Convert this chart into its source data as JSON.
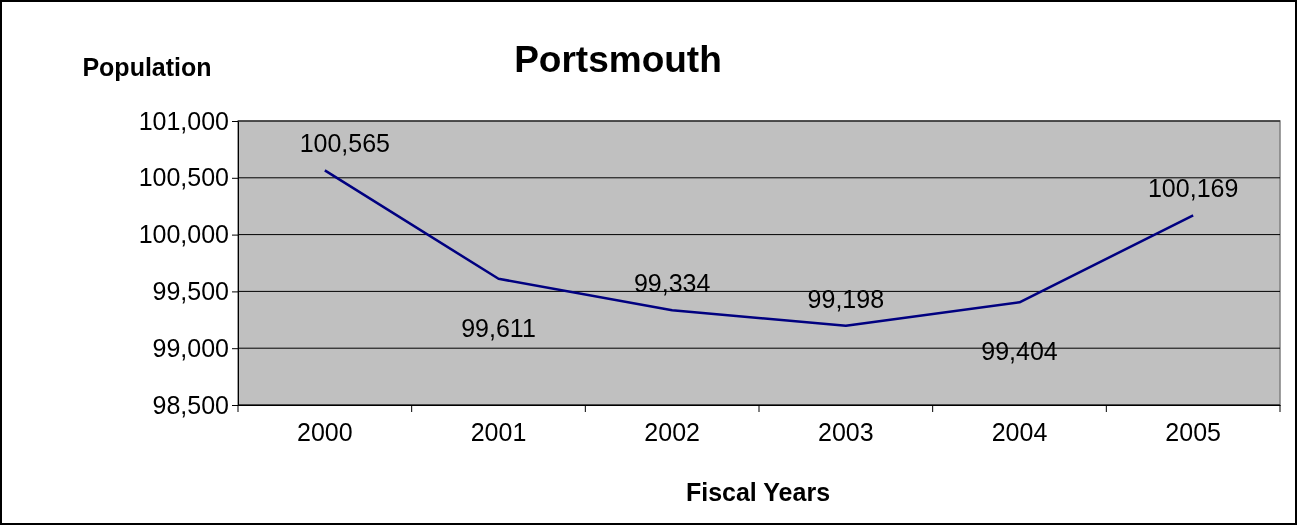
{
  "chart_data": {
    "type": "line",
    "title": "Portsmouth",
    "xlabel": "Fiscal Years",
    "ylabel": "Population",
    "categories": [
      "2000",
      "2001",
      "2002",
      "2003",
      "2004",
      "2005"
    ],
    "series": [
      {
        "color": "#000080",
        "values": [
          100565,
          99611,
          99334,
          99198,
          99404,
          100169
        ],
        "value_labels": [
          "100,565",
          "99,611",
          "99,334",
          "99,198",
          "99,404",
          "100,169"
        ]
      }
    ],
    "ylim": [
      98500,
      101000
    ],
    "yticks": [
      {
        "value": 98500,
        "label": "98,500"
      },
      {
        "value": 99000,
        "label": "99,000"
      },
      {
        "value": 99500,
        "label": "99,500"
      },
      {
        "value": 100000,
        "label": "100,000"
      },
      {
        "value": 100500,
        "label": "100,500"
      },
      {
        "value": 101000,
        "label": "101,000"
      }
    ],
    "grid": "y",
    "marker": "none",
    "line_style": "solid"
  }
}
